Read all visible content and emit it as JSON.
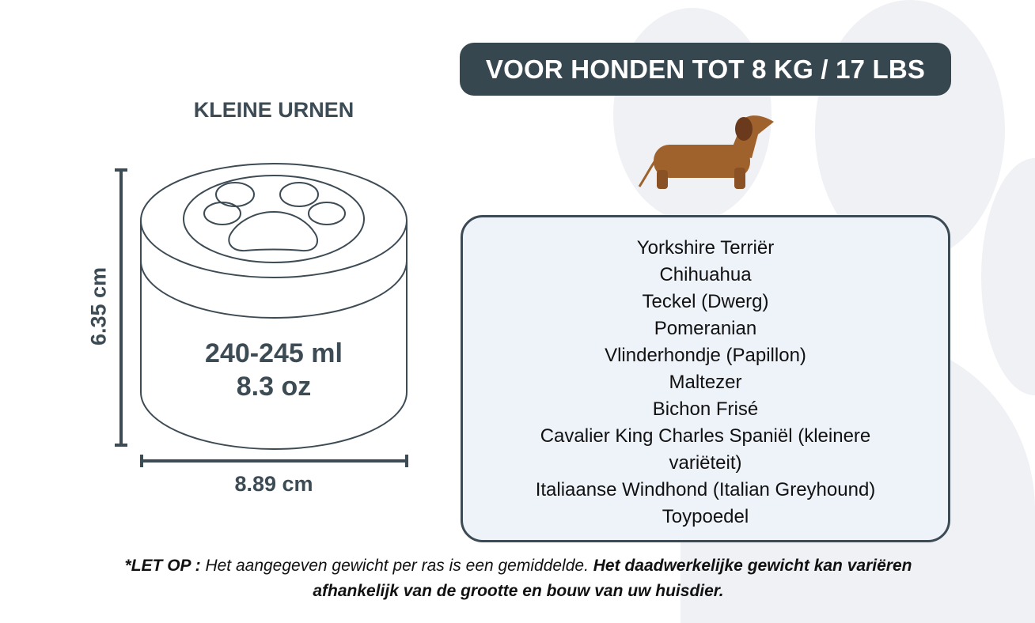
{
  "header": {
    "badge": "VOOR HONDEN TOT 8 KG / 17 LBS"
  },
  "product": {
    "title": "KLEINE URNEN",
    "height": "6.35 cm",
    "width": "8.89 cm",
    "volume_ml": "240-245 ml",
    "volume_oz": "8.3 oz",
    "icons": {
      "urn": "paw-urn-icon",
      "dog": "dachshund-icon"
    }
  },
  "breeds": [
    "Yorkshire Terriër",
    "Chihuahua",
    "Teckel (Dwerg)",
    "Pomeranian",
    "Vlinderhondje (Papillon)",
    "Maltezer",
    "Bichon Frisé",
    "Cavalier King Charles Spaniël (kleinere variëteit)",
    "Italiaanse Windhond (Italian Greyhound)",
    "Toypoedel"
  ],
  "note": {
    "label": "*LET OP :",
    "text": " Het aangegeven gewicht per ras is een gemiddelde. ",
    "bold": "Het daadwerkelijke gewicht kan variëren afhankelijk van de grootte en bouw van uw huisdier."
  },
  "colors": {
    "dark": "#37474f",
    "box_bg": "#eef3fa",
    "dog": "#a0622d"
  }
}
